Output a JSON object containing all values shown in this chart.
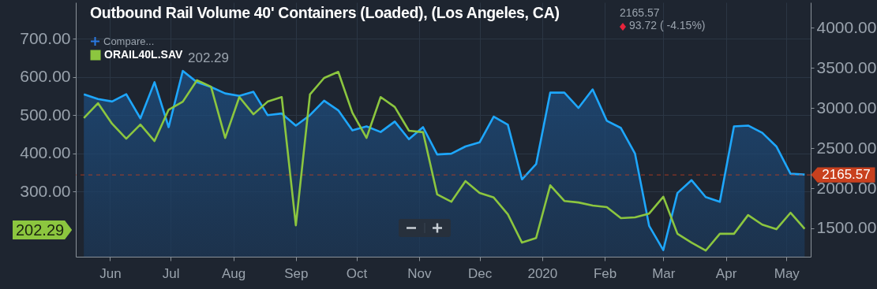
{
  "chart_data": {
    "type": "line",
    "title": "Outbound Rail Volume 40' Containers (Loaded), (Los Angeles, CA)",
    "x": [
      "2019-05-19",
      "2019-05-26",
      "2019-06-02",
      "2019-06-09",
      "2019-06-16",
      "2019-06-23",
      "2019-06-30",
      "2019-07-07",
      "2019-07-14",
      "2019-07-21",
      "2019-07-28",
      "2019-08-04",
      "2019-08-11",
      "2019-08-18",
      "2019-08-25",
      "2019-09-01",
      "2019-09-08",
      "2019-09-15",
      "2019-09-22",
      "2019-09-29",
      "2019-10-06",
      "2019-10-13",
      "2019-10-20",
      "2019-10-27",
      "2019-11-03",
      "2019-11-10",
      "2019-11-17",
      "2019-11-24",
      "2019-12-01",
      "2019-12-08",
      "2019-12-15",
      "2019-12-22",
      "2019-12-29",
      "2020-01-05",
      "2020-01-12",
      "2020-01-19",
      "2020-01-26",
      "2020-02-02",
      "2020-02-09",
      "2020-02-16",
      "2020-02-23",
      "2020-03-01",
      "2020-03-08",
      "2020-03-15",
      "2020-03-22",
      "2020-03-29",
      "2020-04-05",
      "2020-04-12",
      "2020-04-19",
      "2020-04-26",
      "2020-05-03",
      "2020-05-10"
    ],
    "series": [
      {
        "type": "area",
        "axis": "y2",
        "color": "#1ea7fd",
        "values": [
          3170,
          3110,
          3080,
          3170,
          2870,
          3320,
          2760,
          3460,
          3320,
          3260,
          3180,
          3150,
          3200,
          2910,
          2930,
          2780,
          2910,
          3090,
          2970,
          2720,
          2770,
          2700,
          2830,
          2610,
          2760,
          2420,
          2430,
          2520,
          2570,
          2890,
          2790,
          2110,
          2300,
          3190,
          3190,
          3000,
          3230,
          2840,
          2750,
          2430,
          1530,
          1230,
          1940,
          2100,
          1890,
          1830,
          2770,
          2780,
          2690,
          2520,
          2180,
          2170
        ]
      },
      {
        "name": "ORAIL40L.SAV",
        "color": "#8cc63f",
        "values": [
          492,
          531,
          477,
          438,
          475,
          432,
          514,
          535,
          591,
          574,
          440,
          547,
          502,
          535,
          547,
          211,
          554,
          597,
          613,
          506,
          440,
          547,
          521,
          459,
          455,
          292,
          273,
          327,
          296,
          284,
          240,
          166,
          178,
          316,
          275,
          271,
          263,
          259,
          230,
          232,
          242,
          286,
          189,
          166,
          145,
          189,
          189,
          238,
          213,
          201,
          244,
          202
        ]
      }
    ],
    "xlim": [
      "2019-05-15",
      "2020-05-13"
    ],
    "xticks": [
      {
        "value": "2019-06-01",
        "label": "Jun"
      },
      {
        "value": "2019-07-01",
        "label": "Jul"
      },
      {
        "value": "2019-08-01",
        "label": "Aug"
      },
      {
        "value": "2019-09-01",
        "label": "Sep"
      },
      {
        "value": "2019-10-01",
        "label": "Oct"
      },
      {
        "value": "2019-11-01",
        "label": "Nov"
      },
      {
        "value": "2019-12-01",
        "label": "Dec"
      },
      {
        "value": "2020-01-01",
        "label": "2020"
      },
      {
        "value": "2020-02-01",
        "label": "Feb"
      },
      {
        "value": "2020-03-01",
        "label": "Mar"
      },
      {
        "value": "2020-04-01",
        "label": "Apr"
      },
      {
        "value": "2020-05-01",
        "label": "May"
      }
    ],
    "ylim": [
      129,
      795
    ],
    "yticks": [
      {
        "value": 300,
        "label": "300.00"
      },
      {
        "value": 400,
        "label": "400.00"
      },
      {
        "value": 500,
        "label": "500.00"
      },
      {
        "value": 600,
        "label": "600.00"
      },
      {
        "value": 700,
        "label": "700.00"
      }
    ],
    "y2lim": [
      1147,
      4314
    ],
    "y2ticks": [
      {
        "value": 1500,
        "label": "1500.00"
      },
      {
        "value": 2000,
        "label": "2000.00"
      },
      {
        "value": 2500,
        "label": "2500.00"
      },
      {
        "value": 3000,
        "label": "3000.00"
      },
      {
        "value": 3500,
        "label": "3500.00"
      },
      {
        "value": 4000,
        "label": "4000.00"
      }
    ],
    "ref_lines": [
      {
        "axis": "y2",
        "value": 2165.57,
        "label": "2165.57",
        "color": "#c8401e",
        "line_style": "dashed"
      }
    ],
    "annotations": [
      "Compare...",
      "202.29",
      "2165.57",
      "93.72 ( -4.15%)",
      "202.29"
    ],
    "grid": true,
    "legend": "top left"
  }
}
